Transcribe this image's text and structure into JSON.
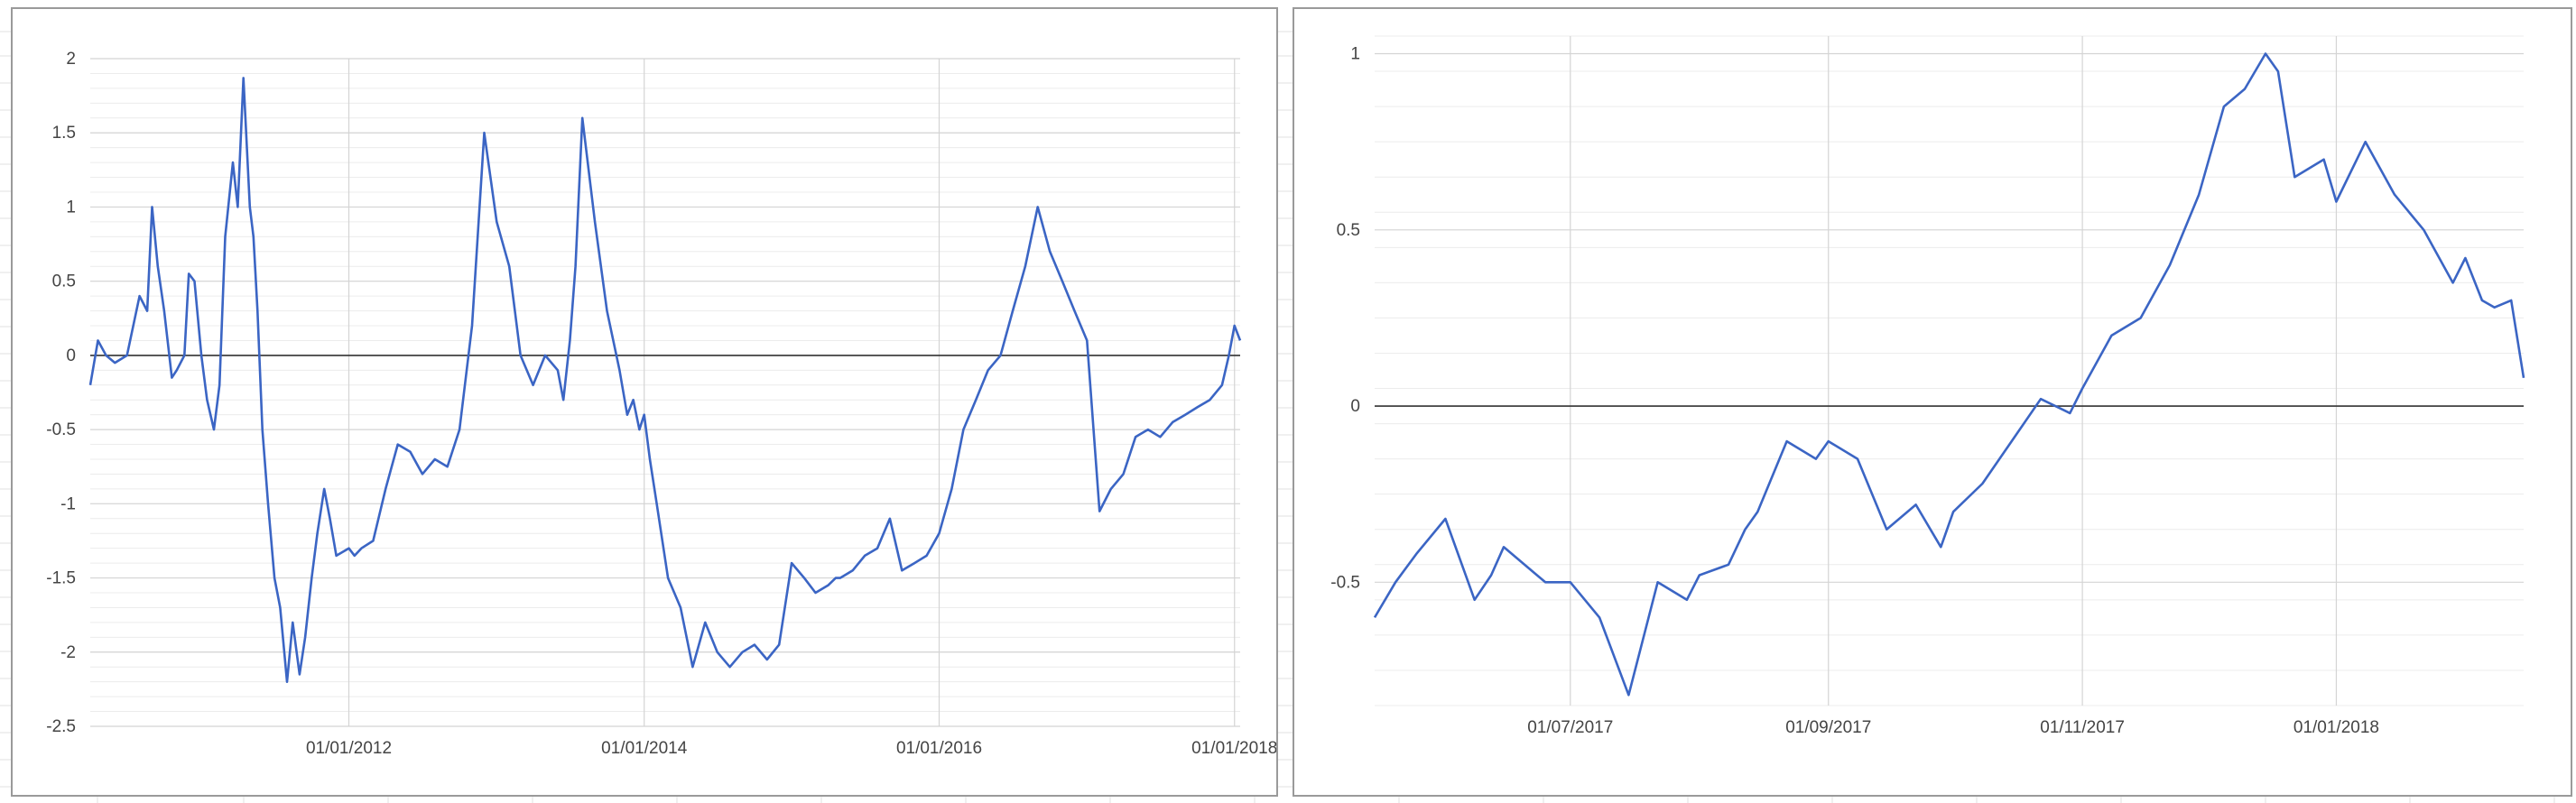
{
  "colors": {
    "line": "#3b65c4",
    "zero_line": "#333333",
    "major_grid": "#d4d4d4",
    "minor_grid": "#ececec",
    "panel_border": "#9a9a9a",
    "sheet_grid": "#e2e2e2",
    "axis_text": "#444444"
  },
  "chart_data": [
    {
      "type": "line",
      "title": "",
      "xlabel": "",
      "ylabel": "",
      "xlim": [
        "2010-04-01",
        "2018-01-15"
      ],
      "ylim": [
        -2.5,
        2
      ],
      "grid": true,
      "legend": "none",
      "y_ticks": [
        "2",
        "1.5",
        "1",
        "0.5",
        "0",
        "-0.5",
        "-1",
        "-1.5",
        "-2",
        "-2.5"
      ],
      "x_ticks": [
        "01/01/2012",
        "01/01/2014",
        "01/01/2016",
        "01/01/2018"
      ],
      "series": [
        {
          "x": [
            "2010-04-01",
            "2010-04-20",
            "2010-05-10",
            "2010-06-01",
            "2010-07-01",
            "2010-08-01",
            "2010-08-20",
            "2010-09-01",
            "2010-09-15",
            "2010-10-01",
            "2010-10-20",
            "2010-11-01",
            "2010-11-20",
            "2010-12-01",
            "2010-12-15",
            "2011-01-01",
            "2011-01-15",
            "2011-02-01",
            "2011-02-15",
            "2011-03-01",
            "2011-03-20",
            "2011-04-01",
            "2011-04-15",
            "2011-05-01",
            "2011-05-10",
            "2011-05-20",
            "2011-06-01",
            "2011-06-15",
            "2011-07-01",
            "2011-07-15",
            "2011-08-01",
            "2011-08-15",
            "2011-09-01",
            "2011-09-15",
            "2011-10-01",
            "2011-10-15",
            "2011-11-01",
            "2011-11-15",
            "2011-12-01",
            "2012-01-01",
            "2012-01-15",
            "2012-02-01",
            "2012-03-01",
            "2012-04-01",
            "2012-05-01",
            "2012-06-01",
            "2012-07-01",
            "2012-08-01",
            "2012-09-01",
            "2012-10-01",
            "2012-11-01",
            "2012-12-01",
            "2013-01-01",
            "2013-02-01",
            "2013-03-01",
            "2013-04-01",
            "2013-05-01",
            "2013-06-01",
            "2013-06-15",
            "2013-07-01",
            "2013-07-15",
            "2013-08-01",
            "2013-09-01",
            "2013-10-01",
            "2013-11-01",
            "2013-11-20",
            "2013-12-05",
            "2013-12-20",
            "2014-01-01",
            "2014-01-15",
            "2014-02-01",
            "2014-03-01",
            "2014-04-01",
            "2014-05-01",
            "2014-06-01",
            "2014-07-01",
            "2014-08-01",
            "2014-09-01",
            "2014-10-01",
            "2014-11-01",
            "2014-12-01",
            "2015-01-01",
            "2015-02-01",
            "2015-03-01",
            "2015-04-01",
            "2015-04-20",
            "2015-05-01",
            "2015-06-01",
            "2015-07-01",
            "2015-08-01",
            "2015-09-01",
            "2015-10-01",
            "2015-11-01",
            "2015-12-01",
            "2016-01-01",
            "2016-02-01",
            "2016-03-01",
            "2016-04-01",
            "2016-05-01",
            "2016-06-01",
            "2016-07-01",
            "2016-08-01",
            "2016-09-01",
            "2016-10-01",
            "2016-11-01",
            "2016-12-01",
            "2017-01-01",
            "2017-02-01",
            "2017-03-01",
            "2017-04-01",
            "2017-05-01",
            "2017-06-01",
            "2017-07-01",
            "2017-08-01",
            "2017-09-01",
            "2017-10-01",
            "2017-11-01",
            "2017-12-01",
            "2017-12-18",
            "2018-01-01",
            "2018-01-15"
          ],
          "y": [
            -0.2,
            0.1,
            0.0,
            -0.05,
            0.0,
            0.4,
            0.3,
            1.0,
            0.6,
            0.3,
            -0.15,
            -0.1,
            0.0,
            0.55,
            0.5,
            0.0,
            -0.3,
            -0.5,
            -0.2,
            0.8,
            1.3,
            1.0,
            1.87,
            1.0,
            0.8,
            0.3,
            -0.5,
            -1.0,
            -1.5,
            -1.7,
            -2.2,
            -1.8,
            -2.15,
            -1.9,
            -1.5,
            -1.2,
            -0.9,
            -1.1,
            -1.35,
            -1.3,
            -1.35,
            -1.3,
            -1.25,
            -0.9,
            -0.6,
            -0.65,
            -0.8,
            -0.7,
            -0.75,
            -0.5,
            0.2,
            1.5,
            0.9,
            0.6,
            0.0,
            -0.2,
            0.0,
            -0.1,
            -0.3,
            0.1,
            0.6,
            1.6,
            0.9,
            0.3,
            -0.1,
            -0.4,
            -0.3,
            -0.5,
            -0.4,
            -0.7,
            -1.0,
            -1.5,
            -1.7,
            -2.1,
            -1.8,
            -2.0,
            -2.1,
            -2.0,
            -1.95,
            -2.05,
            -1.95,
            -1.4,
            -1.5,
            -1.6,
            -1.55,
            -1.5,
            -1.5,
            -1.45,
            -1.35,
            -1.3,
            -1.1,
            -1.45,
            -1.4,
            -1.35,
            -1.2,
            -0.9,
            -0.5,
            -0.3,
            -0.1,
            0.0,
            0.3,
            0.6,
            1.0,
            0.7,
            0.5,
            0.3,
            0.1,
            -1.05,
            -0.9,
            -0.8,
            -0.55,
            -0.5,
            -0.55,
            -0.45,
            -0.4,
            -0.35,
            -0.3,
            -0.2,
            0.0,
            0.2,
            0.1
          ]
        }
      ]
    },
    {
      "type": "line",
      "title": "",
      "xlabel": "",
      "ylabel": "",
      "xlim": [
        "2017-05-15",
        "2018-02-15"
      ],
      "ylim": [
        -0.85,
        1.05
      ],
      "grid": true,
      "legend": "none",
      "y_ticks": [
        "1",
        "0.5",
        "0",
        "-0.5"
      ],
      "x_ticks": [
        "01/07/2017",
        "01/09/2017",
        "01/11/2017",
        "01/01/2018"
      ],
      "series": [
        {
          "x": [
            "2017-05-15",
            "2017-05-20",
            "2017-05-25",
            "2017-06-01",
            "2017-06-08",
            "2017-06-12",
            "2017-06-15",
            "2017-06-20",
            "2017-06-25",
            "2017-07-01",
            "2017-07-08",
            "2017-07-15",
            "2017-07-22",
            "2017-07-29",
            "2017-08-01",
            "2017-08-08",
            "2017-08-12",
            "2017-08-15",
            "2017-08-22",
            "2017-08-29",
            "2017-09-01",
            "2017-09-08",
            "2017-09-15",
            "2017-09-22",
            "2017-09-28",
            "2017-10-01",
            "2017-10-08",
            "2017-10-15",
            "2017-10-22",
            "2017-10-29",
            "2017-11-01",
            "2017-11-08",
            "2017-11-15",
            "2017-11-22",
            "2017-11-29",
            "2017-12-05",
            "2017-12-10",
            "2017-12-15",
            "2017-12-18",
            "2017-12-22",
            "2017-12-29",
            "2018-01-01",
            "2018-01-08",
            "2018-01-15",
            "2018-01-22",
            "2018-01-29",
            "2018-02-01",
            "2018-02-05",
            "2018-02-08",
            "2018-02-12",
            "2018-02-15"
          ],
          "y": [
            -0.6,
            -0.5,
            -0.42,
            -0.32,
            -0.55,
            -0.48,
            -0.4,
            -0.45,
            -0.5,
            -0.5,
            -0.6,
            -0.82,
            -0.5,
            -0.55,
            -0.48,
            -0.45,
            -0.35,
            -0.3,
            -0.1,
            -0.15,
            -0.1,
            -0.15,
            -0.35,
            -0.28,
            -0.4,
            -0.3,
            -0.22,
            -0.1,
            0.02,
            -0.02,
            0.05,
            0.2,
            0.25,
            0.4,
            0.6,
            0.85,
            0.9,
            1.0,
            0.95,
            0.65,
            0.7,
            0.58,
            0.75,
            0.6,
            0.5,
            0.35,
            0.42,
            0.3,
            0.28,
            0.3,
            0.08
          ]
        }
      ]
    }
  ]
}
